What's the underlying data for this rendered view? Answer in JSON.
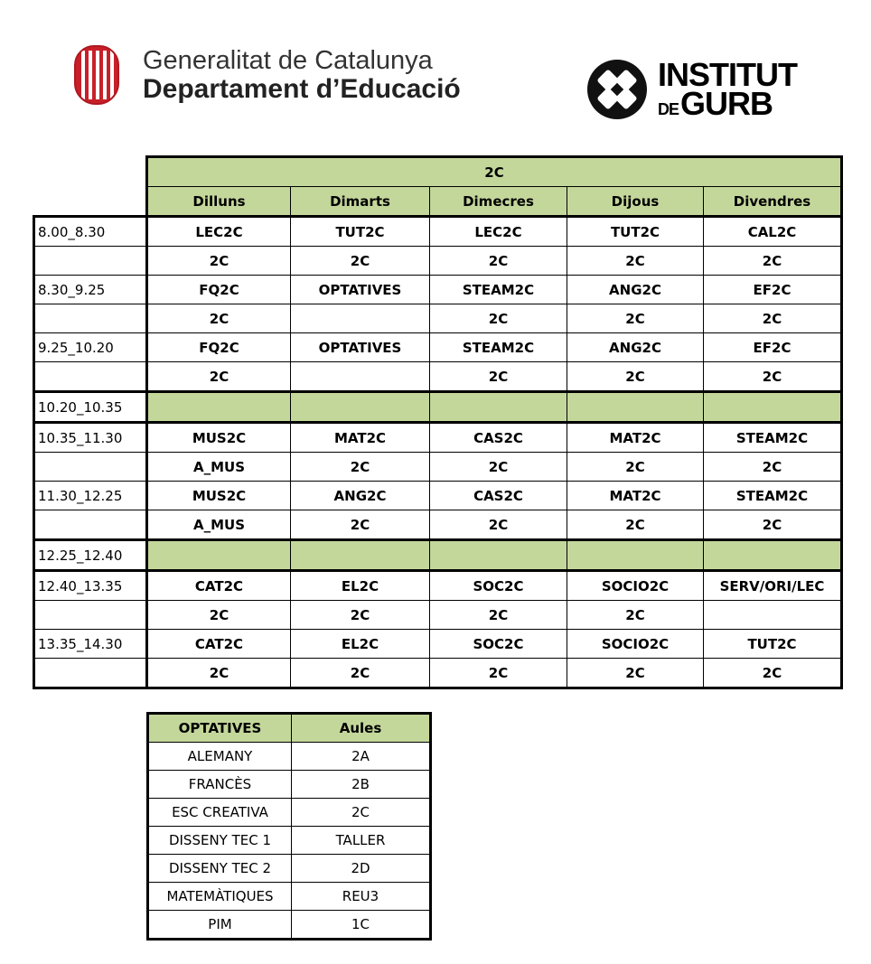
{
  "header": {
    "gencat_line1": "Generalitat de Catalunya",
    "gencat_line2": "Departament d’Educació",
    "institut_line1": "INSTITUT",
    "institut_de": "DE",
    "institut_line2": "GURB"
  },
  "timetable": {
    "group": "2C",
    "days": [
      "Dilluns",
      "Dimarts",
      "Dimecres",
      "Dijous",
      "Divendres"
    ],
    "rows": [
      {
        "time": "8.00_8.30",
        "subjects": [
          "LEC2C",
          "TUT2C",
          "LEC2C",
          "TUT2C",
          "CAL2C"
        ],
        "rooms": [
          "2C",
          "2C",
          "2C",
          "2C",
          "2C"
        ]
      },
      {
        "time": "8.30_9.25",
        "subjects": [
          "FQ2C",
          "OPTATIVES",
          "STEAM2C",
          "ANG2C",
          "EF2C"
        ],
        "rooms": [
          "2C",
          "",
          "2C",
          "2C",
          "2C"
        ]
      },
      {
        "time": "9.25_10.20",
        "subjects": [
          "FQ2C",
          "OPTATIVES",
          "STEAM2C",
          "ANG2C",
          "EF2C"
        ],
        "rooms": [
          "2C",
          "",
          "2C",
          "2C",
          "2C"
        ]
      },
      {
        "time": "10.20_10.35",
        "break": true
      },
      {
        "time": "10.35_11.30",
        "subjects": [
          "MUS2C",
          "MAT2C",
          "CAS2C",
          "MAT2C",
          "STEAM2C"
        ],
        "rooms": [
          "A_MUS",
          "2C",
          "2C",
          "2C",
          "2C"
        ]
      },
      {
        "time": "11.30_12.25",
        "subjects": [
          "MUS2C",
          "ANG2C",
          "CAS2C",
          "MAT2C",
          "STEAM2C"
        ],
        "rooms": [
          "A_MUS",
          "2C",
          "2C",
          "2C",
          "2C"
        ]
      },
      {
        "time": "12.25_12.40",
        "break": true
      },
      {
        "time": "12.40_13.35",
        "subjects": [
          "CAT2C",
          "EL2C",
          "SOC2C",
          "SOCIO2C",
          "SERV/ORI/LEC"
        ],
        "rooms": [
          "2C",
          "2C",
          "2C",
          "2C",
          ""
        ]
      },
      {
        "time": "13.35_14.30",
        "subjects": [
          "CAT2C",
          "EL2C",
          "SOC2C",
          "SOCIO2C",
          "TUT2C"
        ],
        "rooms": [
          "2C",
          "2C",
          "2C",
          "2C",
          "2C"
        ]
      }
    ]
  },
  "optatives": {
    "headers": [
      "OPTATIVES",
      "Aules"
    ],
    "rows": [
      [
        "ALEMANY",
        "2A"
      ],
      [
        "FRANCÈS",
        "2B"
      ],
      [
        "ESC CREATIVA",
        "2C"
      ],
      [
        "DISSENY TEC 1",
        "TALLER"
      ],
      [
        "DISSENY TEC 2",
        "2D"
      ],
      [
        "MATEMÀTIQUES",
        "REU3"
      ],
      [
        "PIM",
        "1C"
      ]
    ]
  },
  "colors": {
    "header_green": "#c4d79b",
    "seal_red": "#c8202a"
  }
}
